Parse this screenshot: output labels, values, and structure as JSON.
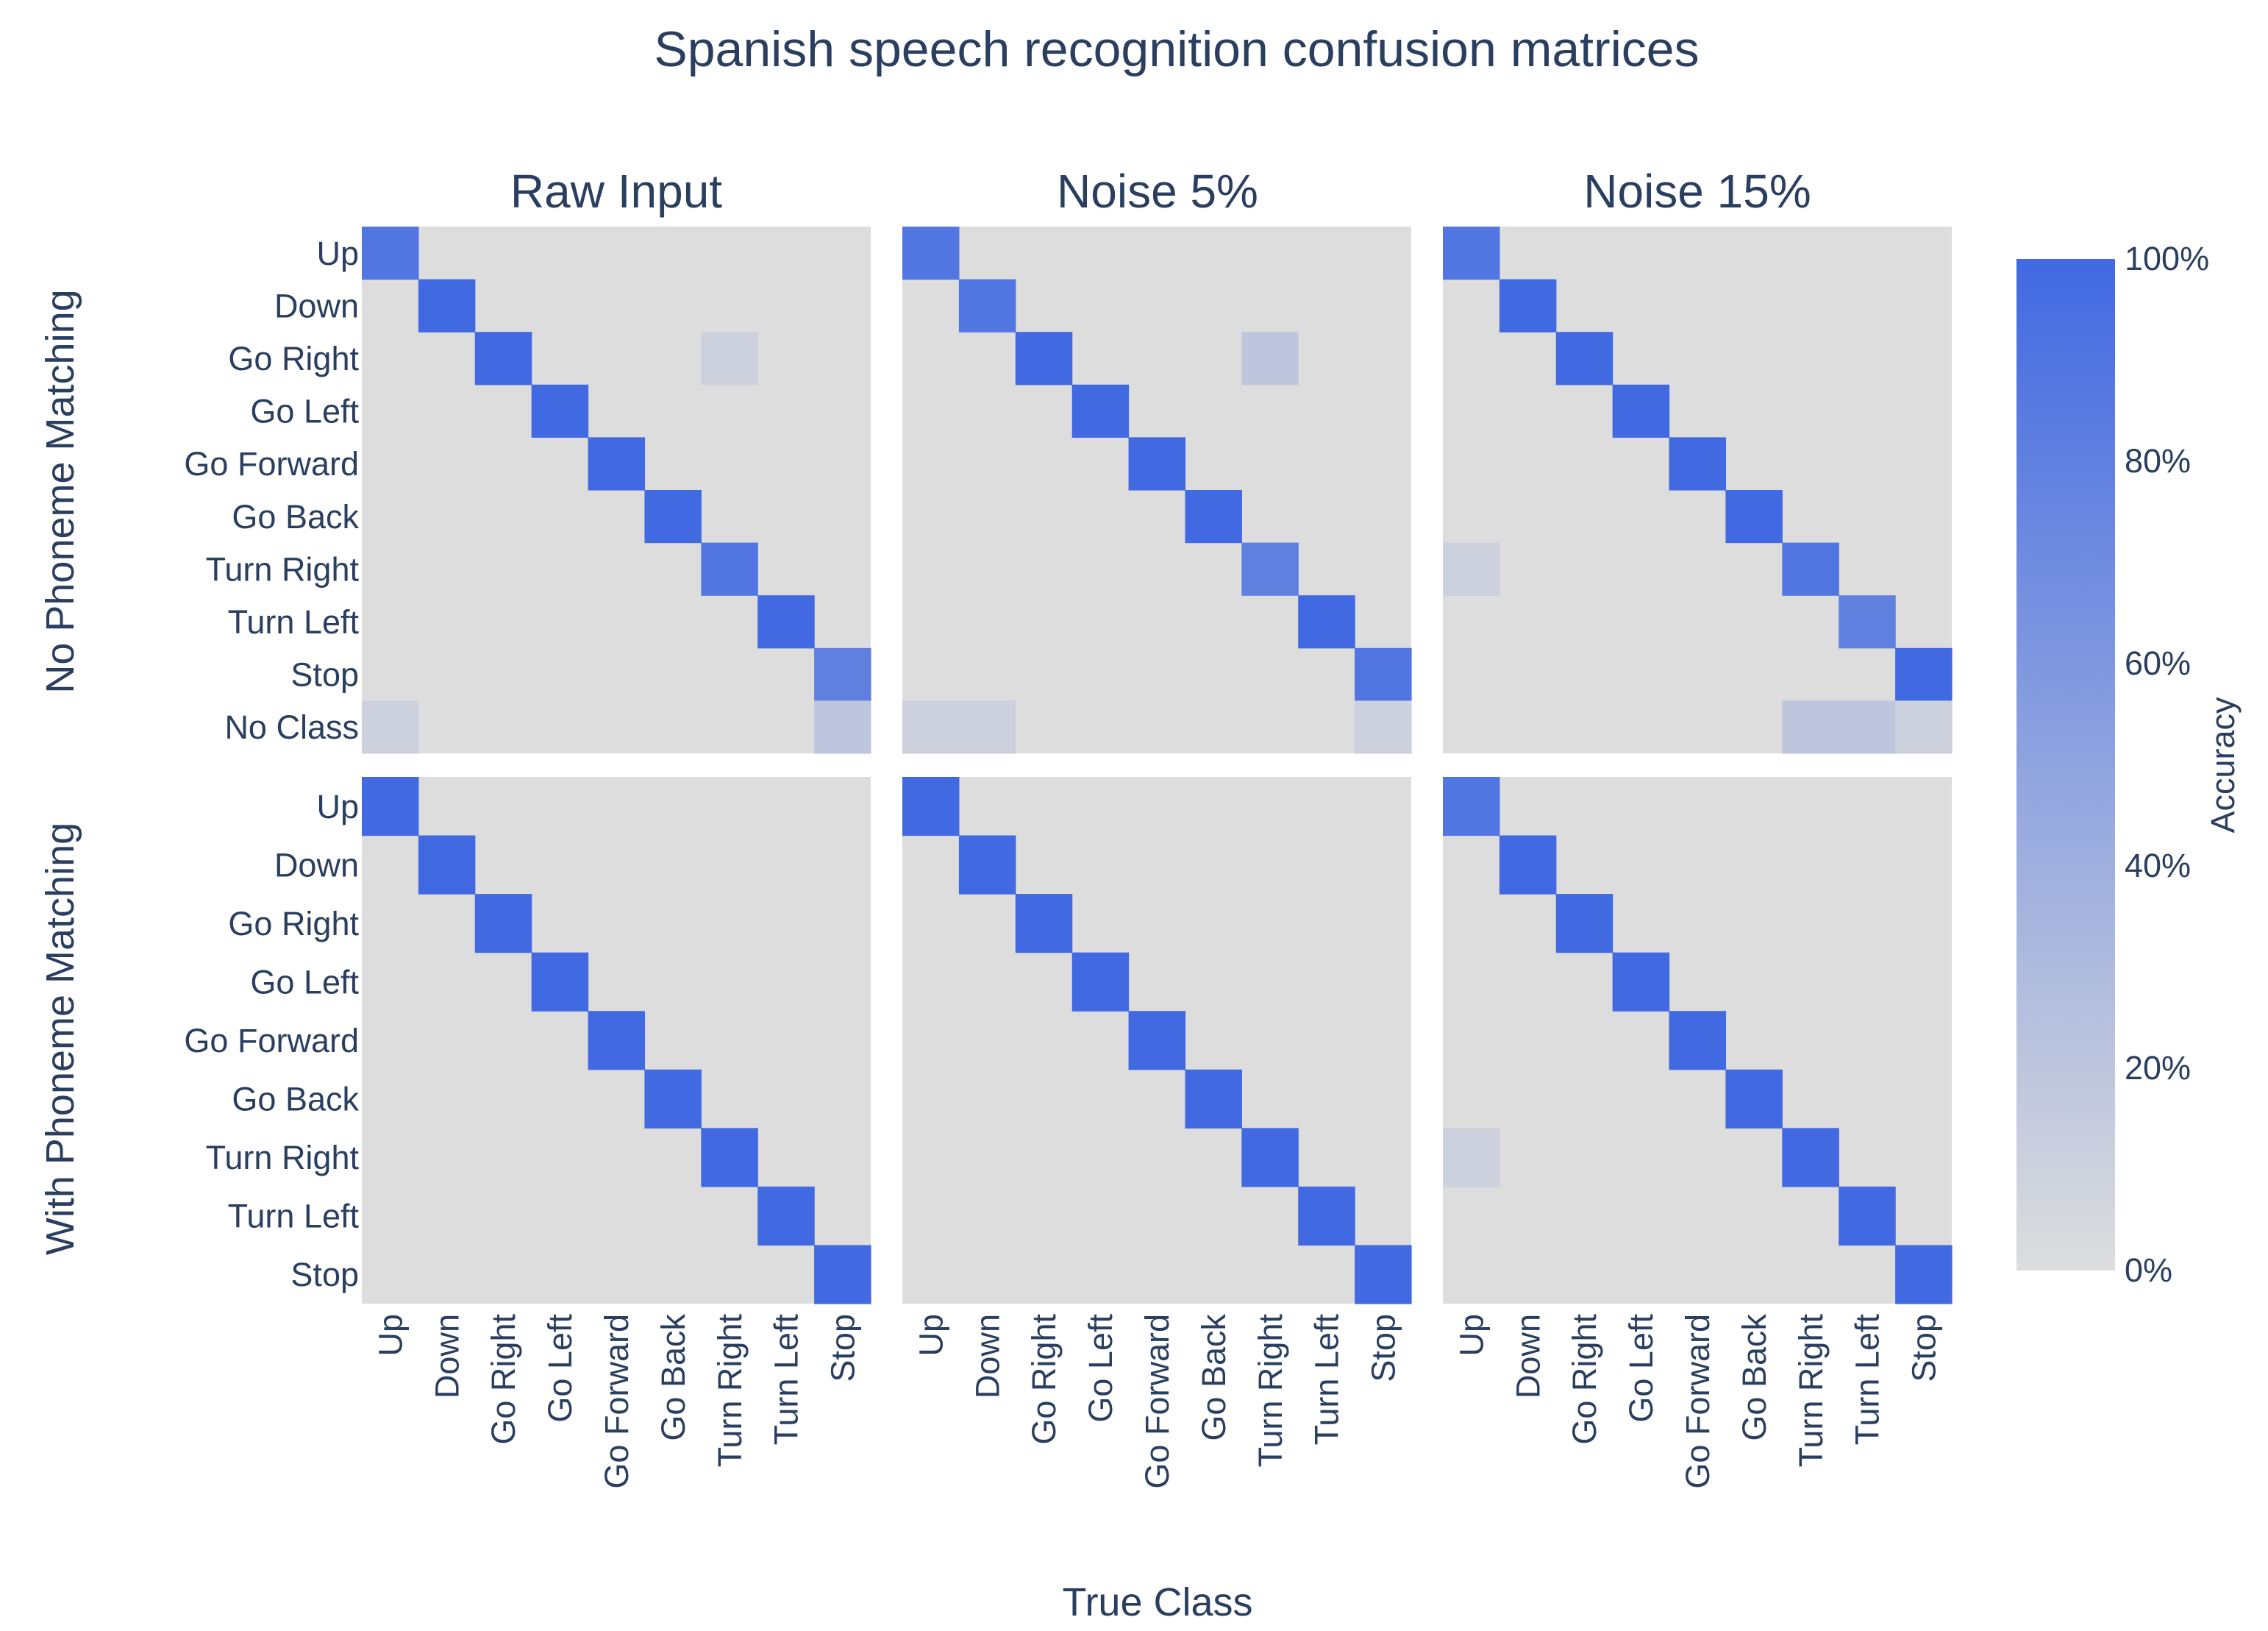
{
  "chart_data": {
    "type": "heatmap",
    "title": "Spanish speech recognition confusion matrices",
    "xlabel": "True Class",
    "colorbar": {
      "title": "Accuracy",
      "ticks": [
        "0%",
        "20%",
        "40%",
        "60%",
        "80%",
        "100%"
      ],
      "range": [
        0,
        100
      ],
      "colorscale": [
        "#dddddd",
        "#4169e1"
      ]
    },
    "columns": [
      "Raw Input",
      "Noise 5%",
      "Noise 15%"
    ],
    "rows": [
      "No Phoneme Matching",
      "With Phoneme Matching"
    ],
    "x_categories": [
      "Up",
      "Down",
      "Go Right",
      "Go Left",
      "Go Forward",
      "Go Back",
      "Turn Right",
      "Turn Left",
      "Stop"
    ],
    "y_categories_top": [
      "Up",
      "Down",
      "Go Right",
      "Go Left",
      "Go Forward",
      "Go Back",
      "Turn Right",
      "Turn Left",
      "Stop",
      "No Class"
    ],
    "y_categories_bottom": [
      "Up",
      "Down",
      "Go Right",
      "Go Left",
      "Go Forward",
      "Go Back",
      "Turn Right",
      "Turn Left",
      "Stop"
    ],
    "panels": [
      {
        "row": "No Phoneme Matching",
        "column": "Raw Input",
        "cells": [
          [
            "Up",
            "Up",
            90
          ],
          [
            "Down",
            "Down",
            100
          ],
          [
            "Go Right",
            "Go Right",
            100
          ],
          [
            "Go Left",
            "Go Left",
            100
          ],
          [
            "Go Forward",
            "Go Forward",
            100
          ],
          [
            "Go Back",
            "Go Back",
            100
          ],
          [
            "Turn Right",
            "Turn Right",
            90
          ],
          [
            "Turn Left",
            "Turn Left",
            100
          ],
          [
            "Stop",
            "Stop",
            80
          ],
          [
            "Turn Right",
            "Go Right",
            10
          ],
          [
            "Up",
            "No Class",
            10
          ],
          [
            "Stop",
            "No Class",
            20
          ]
        ]
      },
      {
        "row": "No Phoneme Matching",
        "column": "Noise 5%",
        "cells": [
          [
            "Up",
            "Up",
            90
          ],
          [
            "Down",
            "Down",
            90
          ],
          [
            "Go Right",
            "Go Right",
            100
          ],
          [
            "Go Left",
            "Go Left",
            100
          ],
          [
            "Go Forward",
            "Go Forward",
            100
          ],
          [
            "Go Back",
            "Go Back",
            100
          ],
          [
            "Turn Right",
            "Turn Right",
            80
          ],
          [
            "Turn Left",
            "Turn Left",
            100
          ],
          [
            "Stop",
            "Stop",
            90
          ],
          [
            "Turn Right",
            "Go Right",
            20
          ],
          [
            "Up",
            "No Class",
            10
          ],
          [
            "Down",
            "No Class",
            10
          ],
          [
            "Stop",
            "No Class",
            10
          ]
        ]
      },
      {
        "row": "No Phoneme Matching",
        "column": "Noise 15%",
        "cells": [
          [
            "Up",
            "Up",
            90
          ],
          [
            "Down",
            "Down",
            100
          ],
          [
            "Go Right",
            "Go Right",
            100
          ],
          [
            "Go Left",
            "Go Left",
            100
          ],
          [
            "Go Forward",
            "Go Forward",
            100
          ],
          [
            "Go Back",
            "Go Back",
            100
          ],
          [
            "Turn Right",
            "Turn Right",
            90
          ],
          [
            "Turn Left",
            "Turn Left",
            80
          ],
          [
            "Stop",
            "Stop",
            100
          ],
          [
            "Up",
            "Turn Right",
            10
          ],
          [
            "Turn Right",
            "No Class",
            20
          ],
          [
            "Turn Left",
            "No Class",
            20
          ],
          [
            "Stop",
            "No Class",
            10
          ]
        ]
      },
      {
        "row": "With Phoneme Matching",
        "column": "Raw Input",
        "cells": [
          [
            "Up",
            "Up",
            100
          ],
          [
            "Down",
            "Down",
            100
          ],
          [
            "Go Right",
            "Go Right",
            100
          ],
          [
            "Go Left",
            "Go Left",
            100
          ],
          [
            "Go Forward",
            "Go Forward",
            100
          ],
          [
            "Go Back",
            "Go Back",
            100
          ],
          [
            "Turn Right",
            "Turn Right",
            100
          ],
          [
            "Turn Left",
            "Turn Left",
            100
          ],
          [
            "Stop",
            "Stop",
            100
          ]
        ]
      },
      {
        "row": "With Phoneme Matching",
        "column": "Noise 5%",
        "cells": [
          [
            "Up",
            "Up",
            100
          ],
          [
            "Down",
            "Down",
            100
          ],
          [
            "Go Right",
            "Go Right",
            100
          ],
          [
            "Go Left",
            "Go Left",
            100
          ],
          [
            "Go Forward",
            "Go Forward",
            100
          ],
          [
            "Go Back",
            "Go Back",
            100
          ],
          [
            "Turn Right",
            "Turn Right",
            100
          ],
          [
            "Turn Left",
            "Turn Left",
            100
          ],
          [
            "Stop",
            "Stop",
            100
          ]
        ]
      },
      {
        "row": "With Phoneme Matching",
        "column": "Noise 15%",
        "cells": [
          [
            "Up",
            "Up",
            90
          ],
          [
            "Down",
            "Down",
            100
          ],
          [
            "Go Right",
            "Go Right",
            100
          ],
          [
            "Go Left",
            "Go Left",
            100
          ],
          [
            "Go Forward",
            "Go Forward",
            100
          ],
          [
            "Go Back",
            "Go Back",
            100
          ],
          [
            "Turn Right",
            "Turn Right",
            100
          ],
          [
            "Turn Left",
            "Turn Left",
            100
          ],
          [
            "Stop",
            "Stop",
            100
          ],
          [
            "Up",
            "Turn Right",
            10
          ]
        ]
      }
    ]
  }
}
